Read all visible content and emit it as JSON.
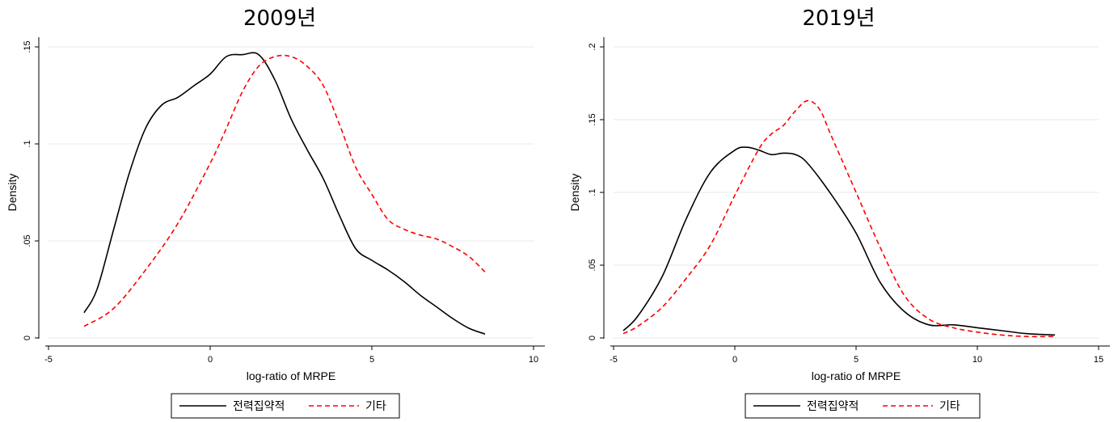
{
  "chart_data": [
    {
      "type": "line",
      "title": "2009년",
      "xlabel": "log-ratio of MRPE",
      "ylabel": "Density",
      "xlim": [
        -5,
        10
      ],
      "ylim": [
        0,
        0.15
      ],
      "xticks": [
        -5,
        0,
        5,
        10
      ],
      "xtick_labels": [
        "-5",
        "0",
        "5",
        "10"
      ],
      "yticks": [
        0,
        0.05,
        0.1,
        0.15
      ],
      "ytick_labels": [
        "0",
        ".05",
        ".1",
        ".15"
      ],
      "grid": "horizontal",
      "legend": "bottom",
      "series": [
        {
          "name": "전력집약적",
          "color": "#000000",
          "dash": "solid",
          "x": [
            -3.9,
            -3.5,
            -3.0,
            -2.5,
            -2.0,
            -1.5,
            -1.0,
            -0.5,
            0.0,
            0.5,
            1.0,
            1.5,
            2.0,
            2.5,
            3.0,
            3.5,
            4.0,
            4.5,
            5.0,
            5.5,
            6.0,
            6.5,
            7.0,
            7.5,
            8.0,
            8.5
          ],
          "y": [
            0.013,
            0.025,
            0.055,
            0.085,
            0.108,
            0.12,
            0.124,
            0.13,
            0.136,
            0.145,
            0.146,
            0.146,
            0.133,
            0.113,
            0.097,
            0.082,
            0.063,
            0.046,
            0.04,
            0.035,
            0.029,
            0.022,
            0.016,
            0.01,
            0.005,
            0.002
          ]
        },
        {
          "name": "기타",
          "color": "#ff0000",
          "dash": "dashed",
          "x": [
            -3.9,
            -3.0,
            -2.0,
            -1.0,
            0.0,
            0.5,
            1.0,
            1.5,
            2.0,
            2.5,
            3.0,
            3.5,
            4.0,
            4.5,
            5.0,
            5.5,
            6.0,
            6.5,
            7.0,
            7.5,
            8.0,
            8.5
          ],
          "y": [
            0.006,
            0.015,
            0.035,
            0.059,
            0.09,
            0.108,
            0.127,
            0.14,
            0.145,
            0.145,
            0.14,
            0.13,
            0.11,
            0.088,
            0.074,
            0.061,
            0.056,
            0.053,
            0.051,
            0.047,
            0.042,
            0.034
          ]
        }
      ]
    },
    {
      "type": "line",
      "title": "2019년",
      "xlabel": "log-ratio of MRPE",
      "ylabel": "Density",
      "xlim": [
        -5,
        15
      ],
      "ylim": [
        0,
        0.2
      ],
      "xticks": [
        -5,
        0,
        5,
        10,
        15
      ],
      "xtick_labels": [
        "-5",
        "0",
        "5",
        "10",
        "15"
      ],
      "yticks": [
        0,
        0.05,
        0.1,
        0.15,
        0.2
      ],
      "ytick_labels": [
        "0",
        ".05",
        ".1",
        ".15",
        ".2"
      ],
      "grid": "horizontal",
      "legend": "bottom",
      "series": [
        {
          "name": "전력집약적",
          "color": "#000000",
          "dash": "solid",
          "x": [
            -4.6,
            -4.0,
            -3.0,
            -2.0,
            -1.0,
            0.0,
            0.5,
            1.0,
            1.5,
            2.0,
            2.5,
            3.0,
            4.0,
            5.0,
            6.0,
            7.0,
            8.0,
            9.0,
            10.0,
            11.0,
            12.0,
            13.2
          ],
          "y": [
            0.005,
            0.015,
            0.042,
            0.082,
            0.114,
            0.129,
            0.131,
            0.129,
            0.126,
            0.127,
            0.126,
            0.12,
            0.098,
            0.072,
            0.038,
            0.018,
            0.009,
            0.009,
            0.007,
            0.005,
            0.003,
            0.002
          ],
          "dummy": null
        },
        {
          "name": "기타",
          "color": "#ff0000",
          "dash": "dashed",
          "x": [
            -4.6,
            -4.0,
            -3.0,
            -2.0,
            -1.0,
            0.0,
            1.0,
            1.5,
            2.0,
            2.5,
            3.0,
            3.5,
            4.0,
            5.0,
            6.0,
            7.0,
            8.0,
            9.0,
            10.0,
            11.0,
            12.0,
            13.2
          ],
          "y": [
            0.003,
            0.008,
            0.021,
            0.041,
            0.064,
            0.098,
            0.13,
            0.14,
            0.146,
            0.156,
            0.163,
            0.157,
            0.138,
            0.1,
            0.062,
            0.029,
            0.013,
            0.007,
            0.004,
            0.002,
            0.001,
            0.001
          ]
        }
      ]
    }
  ]
}
